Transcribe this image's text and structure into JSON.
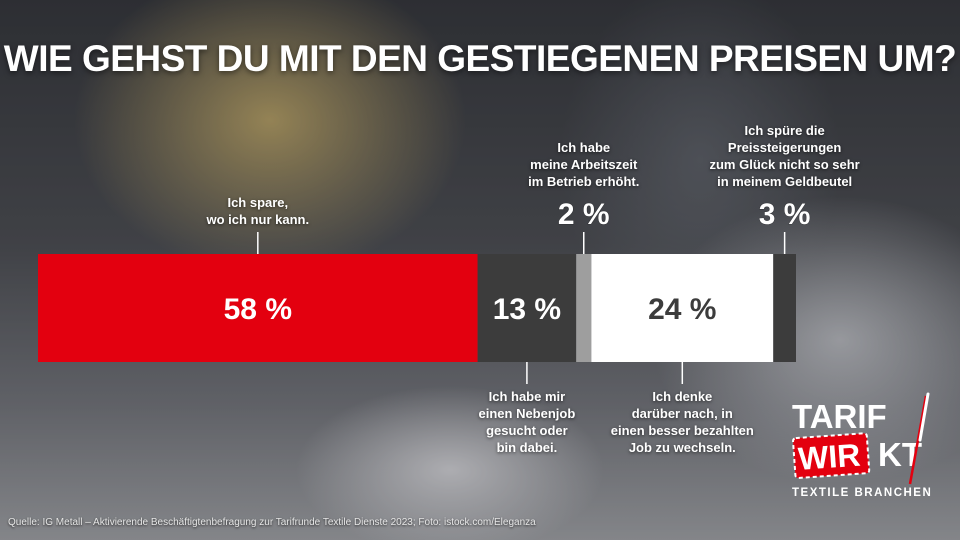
{
  "title": "WIE GEHST DU MIT DEN GESTIEGENEN PREISEN UM?",
  "chart_data": {
    "type": "bar",
    "stacked": true,
    "orientation": "horizontal",
    "title": "WIE GEHST DU MIT DEN GESTIEGENEN PREISEN UM?",
    "categories": [
      "Ich spare, wo ich nur kann.",
      "Ich habe mir einen Nebenjob gesucht oder bin dabei.",
      "Ich habe meine Arbeitszeit im Betrieb erhöht.",
      "Ich denke darüber nach, in einen besser bezahlten Job zu wechseln.",
      "Ich spüre die Preissteigerungen zum Glück nicht so sehr in meinem Geldbeutel"
    ],
    "values": [
      58,
      13,
      2,
      24,
      3
    ],
    "value_labels": [
      "58 %",
      "13 %",
      "2 %",
      "24 %",
      "3 %"
    ],
    "colors": [
      "#e3000f",
      "#3c3c3c",
      "#9e9e9e",
      "#ffffff",
      "#3c3c3c"
    ],
    "label_colors": [
      "#ffffff",
      "#ffffff",
      "#ffffff",
      "#3c3c3c",
      "#ffffff"
    ],
    "label_inside": [
      true,
      true,
      false,
      true,
      false
    ],
    "callout_position": [
      "above",
      "below",
      "above",
      "below",
      "above"
    ],
    "category_label_lines": [
      [
        "Ich spare,",
        "wo ich nur kann."
      ],
      [
        "Ich habe mir",
        "einen Nebenjob",
        "gesucht oder",
        "bin dabei."
      ],
      [
        "Ich habe",
        "meine Arbeitszeit",
        "im Betrieb erhöht."
      ],
      [
        "Ich denke",
        "darüber nach, in",
        "einen besser bezahlten",
        "Job zu wechseln."
      ],
      [
        "Ich spüre die",
        "Preissteigerungen",
        "zum Glück nicht so sehr",
        "in meinem Geldbeutel"
      ]
    ],
    "xlim": [
      0,
      100
    ]
  },
  "source": "Quelle: IG Metall – Aktivierende Beschäftigtenbefragung zur Tarifrunde Textile Dienste 2023; Foto: istock.com/Eleganza",
  "logo": {
    "line1": "TARIF",
    "line2a": "WIR",
    "line2b": "KT",
    "tagline": "TEXTILE BRANCHEN",
    "colors": {
      "red": "#e3000f",
      "white": "#ffffff"
    }
  }
}
